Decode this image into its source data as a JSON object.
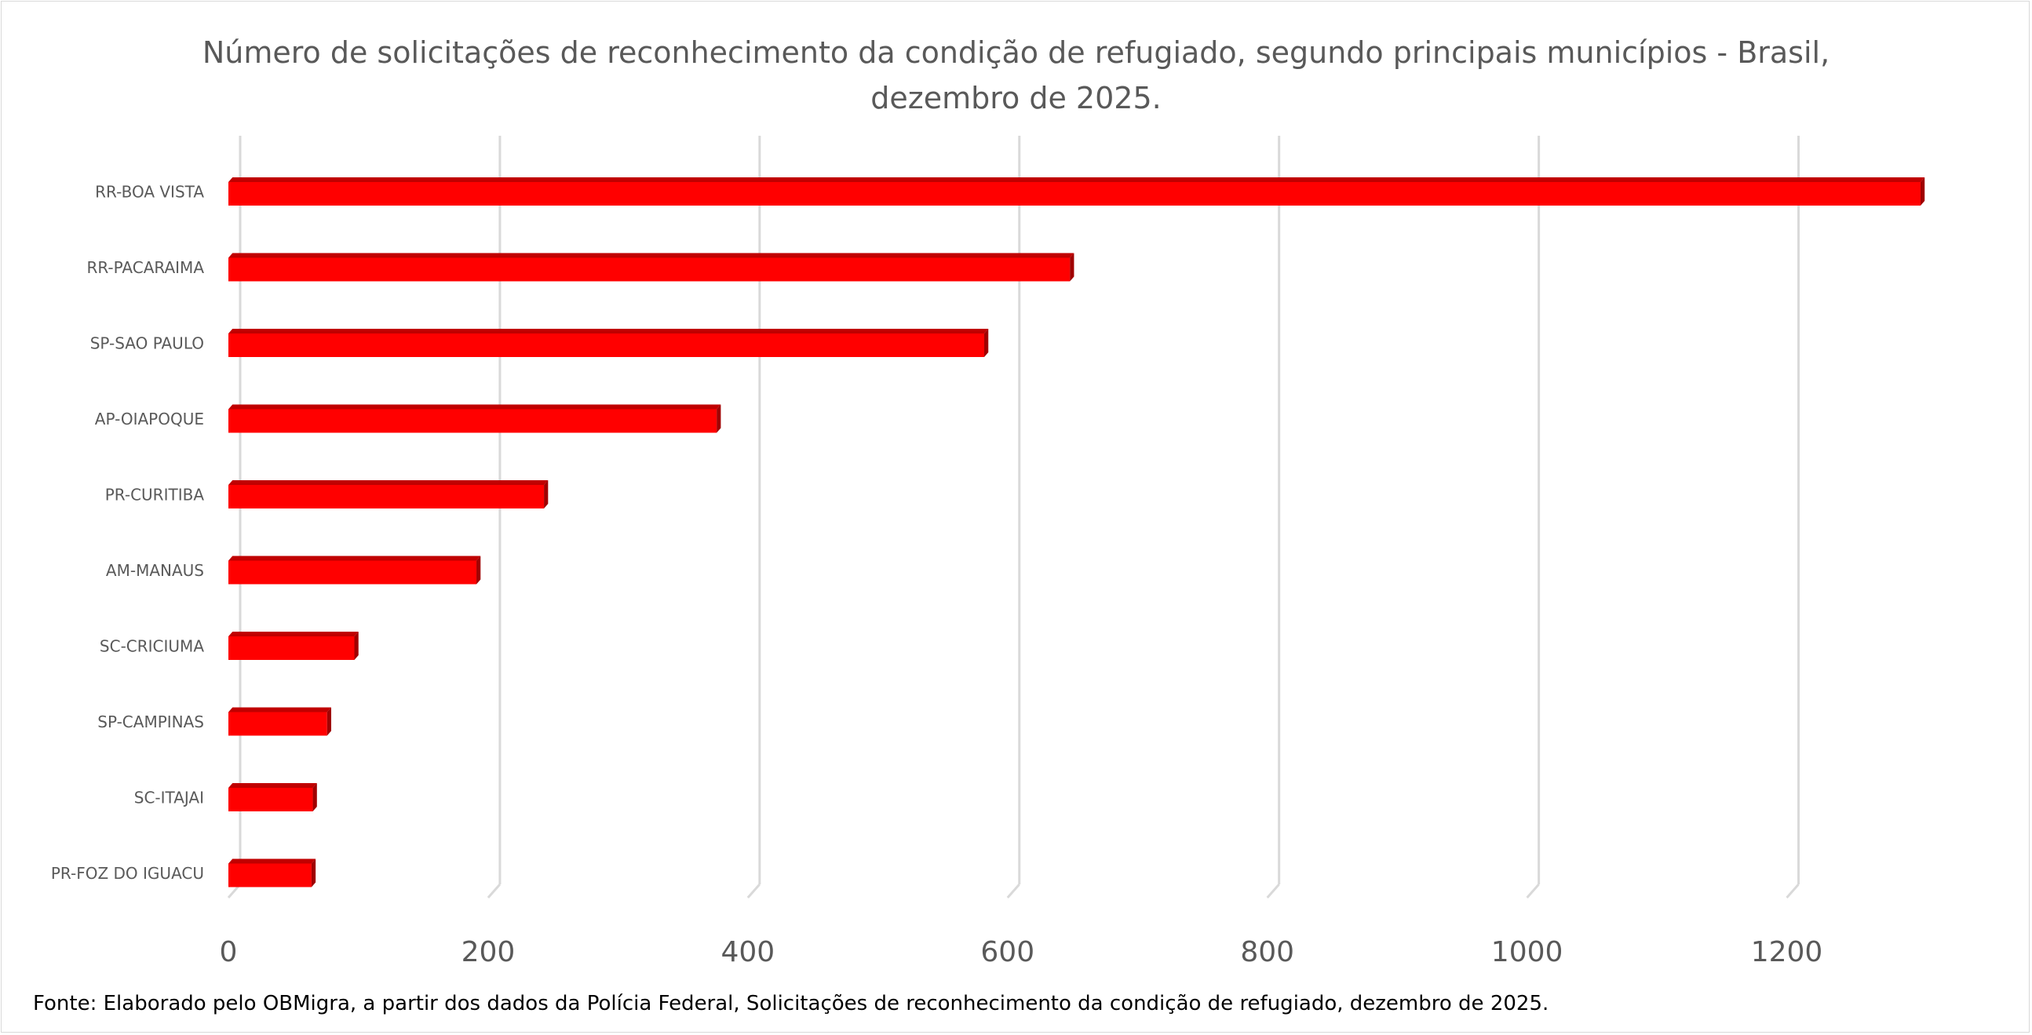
{
  "chart_data": {
    "type": "bar",
    "orientation": "horizontal",
    "title": "Número de solicitações de reconhecimento da condição de refugiado, segundo principais municípios - Brasil, dezembro de 2025.",
    "title_lines": [
      "Número de solicitações de reconhecimento da condição de refugiado, segundo principais municípios - Brasil,",
      "dezembro de 2025."
    ],
    "categories": [
      "RR-BOA VISTA",
      "RR-PACARAIMA",
      "SP-SAO PAULO",
      "AP-OIAPOQUE",
      "PR-CURITIBA",
      "AM-MANAUS",
      "SC-CRICIUMA",
      "SP-CAMPINAS",
      "SC-ITAJAI",
      "PR-FOZ DO IGUACU"
    ],
    "values": [
      1303,
      648,
      582,
      376,
      243,
      191,
      97,
      76,
      65,
      64
    ],
    "xlim": [
      0,
      1300
    ],
    "xticks": [
      "0",
      "200",
      "400",
      "600",
      "800",
      "1000",
      "1200"
    ],
    "xtick_values": [
      0,
      200,
      400,
      600,
      800,
      1000,
      1200
    ],
    "xlabel": "",
    "ylabel": "",
    "grid": true,
    "legend": "none",
    "bar_color": "#ff0000",
    "style": "3d"
  },
  "footer": {
    "source": "Fonte: Elaborado pelo OBMigra,  a partir dos dados da Polícia Federal, Solicitações de reconhecimento da condição de refugiado, dezembro  de 2025."
  }
}
